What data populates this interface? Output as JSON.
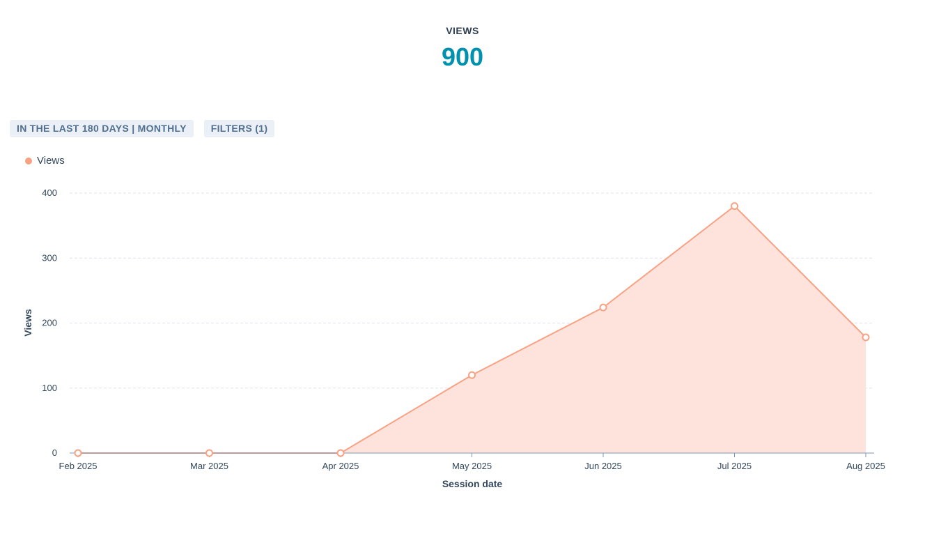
{
  "kpi": {
    "label": "VIEWS",
    "value": "900"
  },
  "controls": {
    "date_range_label": "IN THE LAST 180 DAYS | MONTHLY",
    "filters_label": "FILTERS (1)"
  },
  "colors": {
    "accent": "#0091ae",
    "series": "#f8a283",
    "fill": "#fee3dd",
    "grid": "#dfe3eb",
    "axis": "#7c98b6"
  },
  "chart_data": {
    "type": "area",
    "x": [
      "Feb 2025",
      "Mar 2025",
      "Apr 2025",
      "May 2025",
      "Jun 2025",
      "Jul 2025",
      "Aug 2025"
    ],
    "series": [
      {
        "name": "Views",
        "values": [
          0,
          0,
          0,
          120,
          224,
          380,
          178
        ]
      }
    ],
    "xlabel": "Session date",
    "ylabel": "Views",
    "ylim": [
      0,
      400
    ],
    "yticks": [
      0,
      100,
      200,
      300,
      400
    ],
    "grid": true,
    "legend": "top-left"
  }
}
